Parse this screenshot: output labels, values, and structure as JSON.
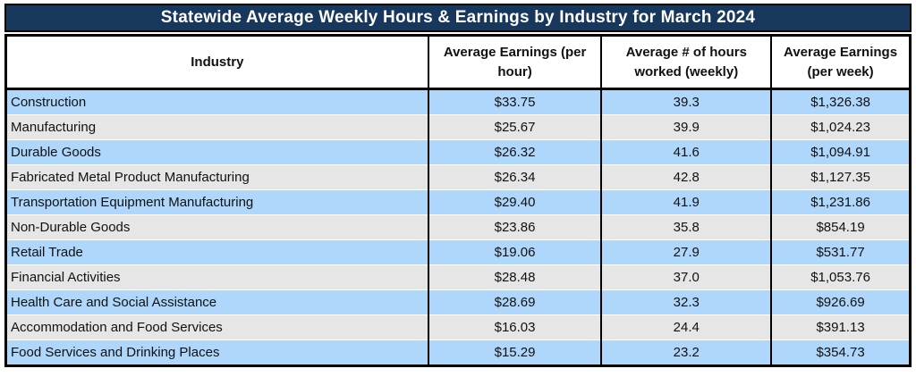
{
  "title": "Statewide Average Weekly Hours & Earnings by Industry for March 2024",
  "chart_data": {
    "type": "table",
    "title": "Statewide Average Weekly Hours & Earnings by Industry for March 2024",
    "columns": [
      "Industry",
      "Average Earnings (per hour)",
      "Average # of hours worked (weekly)",
      "Average Earnings (per week)"
    ],
    "rows": [
      {
        "industry": "Construction",
        "hourly": "$33.75",
        "hours": "39.3",
        "weekly": "$1,326.38"
      },
      {
        "industry": "Manufacturing",
        "hourly": "$25.67",
        "hours": "39.9",
        "weekly": "$1,024.23"
      },
      {
        "industry": "Durable Goods",
        "hourly": "$26.32",
        "hours": "41.6",
        "weekly": "$1,094.91"
      },
      {
        "industry": "Fabricated Metal Product Manufacturing",
        "hourly": "$26.34",
        "hours": "42.8",
        "weekly": "$1,127.35"
      },
      {
        "industry": "Transportation Equipment Manufacturing",
        "hourly": "$29.40",
        "hours": "41.9",
        "weekly": "$1,231.86"
      },
      {
        "industry": "Non-Durable Goods",
        "hourly": "$23.86",
        "hours": "35.8",
        "weekly": "$854.19"
      },
      {
        "industry": "Retail Trade",
        "hourly": "$19.06",
        "hours": "27.9",
        "weekly": "$531.77"
      },
      {
        "industry": "Financial Activities",
        "hourly": "$28.48",
        "hours": "37.0",
        "weekly": "$1,053.76"
      },
      {
        "industry": "Health Care and Social Assistance",
        "hourly": "$28.69",
        "hours": "32.3",
        "weekly": "$926.69"
      },
      {
        "industry": "Accommodation and Food Services",
        "hourly": "$16.03",
        "hours": "24.4",
        "weekly": "$391.13"
      },
      {
        "industry": "Food Services and Drinking Places",
        "hourly": "$15.29",
        "hours": "23.2",
        "weekly": "$354.73"
      }
    ],
    "numeric_values": {
      "avg_hourly_earnings": [
        33.75,
        25.67,
        26.32,
        26.34,
        29.4,
        23.86,
        19.06,
        28.48,
        28.69,
        16.03,
        15.29
      ],
      "avg_weekly_hours": [
        39.3,
        39.9,
        41.6,
        42.8,
        41.9,
        35.8,
        27.9,
        37.0,
        32.3,
        24.4,
        23.2
      ],
      "avg_weekly_earnings": [
        1326.38,
        1024.23,
        1094.91,
        1127.35,
        1231.86,
        854.19,
        531.77,
        1053.76,
        926.69,
        391.13,
        354.73
      ]
    }
  },
  "colors": {
    "title_bg": "#17375d",
    "title_text": "#ffffff",
    "row_blue": "#afd6fb",
    "row_gray": "#e6e6e6",
    "border": "#000000"
  }
}
